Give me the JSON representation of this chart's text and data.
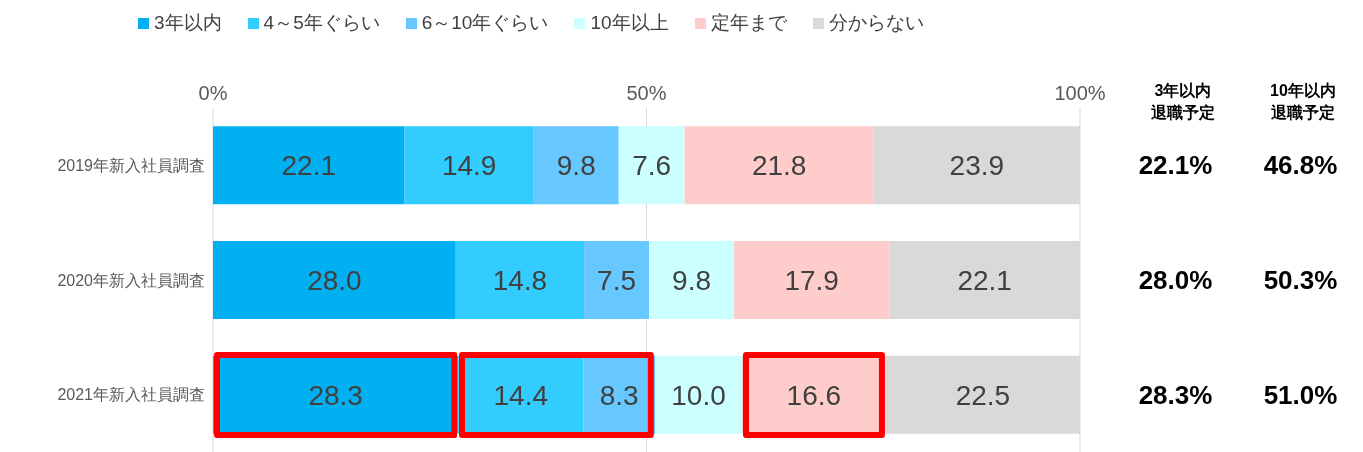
{
  "chart_data": {
    "type": "bar",
    "orientation": "horizontal",
    "stacked": true,
    "categories": [
      "2019年新入社員調査",
      "2020年新入社員調査",
      "2021年新入社員調査"
    ],
    "series": [
      {
        "name": "3年以内",
        "color": "#00b0f0",
        "values": [
          22.1,
          28.0,
          28.3
        ],
        "value_labels": [
          "22.1",
          "28.0",
          "28.3"
        ]
      },
      {
        "name": "4～5年ぐらい",
        "color": "#33ccff",
        "values": [
          14.9,
          14.8,
          14.4
        ],
        "value_labels": [
          "14.9",
          "14.8",
          "14.4"
        ]
      },
      {
        "name": "6～10年ぐらい",
        "color": "#66c8ff",
        "values": [
          9.8,
          7.5,
          8.3
        ],
        "value_labels": [
          "9.8",
          "7.5",
          "8.3"
        ]
      },
      {
        "name": "10年以上",
        "color": "#ccffff",
        "values": [
          7.6,
          9.8,
          10.0
        ],
        "value_labels": [
          "7.6",
          "9.8",
          "10.0"
        ]
      },
      {
        "name": "定年まで",
        "color": "#ffcccc",
        "values": [
          21.8,
          17.9,
          16.6
        ],
        "value_labels": [
          "21.8",
          "17.9",
          "16.6"
        ]
      },
      {
        "name": "分からない",
        "color": "#d9d9d9",
        "values": [
          23.9,
          22.1,
          22.5
        ],
        "value_labels": [
          "23.9",
          "22.1",
          "22.5"
        ]
      }
    ],
    "xlim": [
      0,
      100
    ],
    "xticks": [
      {
        "value": 0,
        "label": "0%"
      },
      {
        "value": 50,
        "label": "50%"
      },
      {
        "value": 100,
        "label": "100%"
      }
    ],
    "grid": "x",
    "legend": "top",
    "annotations": [
      "3年以内退職予定",
      "10年以内退職予定",
      "22.1%",
      "46.8%",
      "28.0%",
      "50.3%",
      "28.3%",
      "51.0%"
    ]
  }
}
